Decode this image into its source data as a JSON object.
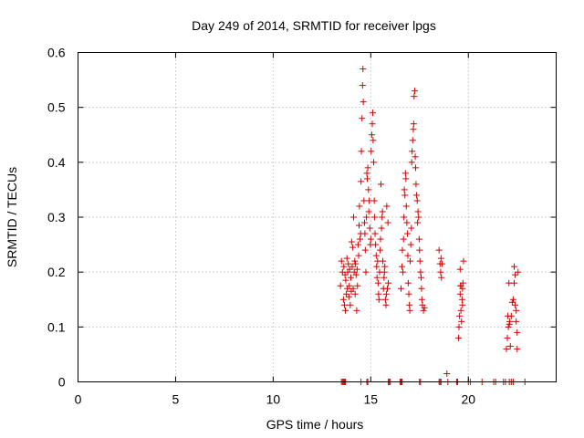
{
  "chart_data": {
    "type": "scatter",
    "title": "Day 249 of 2014, SRMTID for receiver lpgs",
    "xlabel": "GPS time / hours",
    "ylabel": "SRMTID / TECUs",
    "xlim": [
      0,
      24.5
    ],
    "ylim": [
      0,
      0.6
    ],
    "xticks": [
      0,
      5,
      10,
      15,
      20
    ],
    "yticks": [
      0,
      0.1,
      0.2,
      0.3,
      0.4,
      0.5,
      0.6
    ],
    "xtick_labels": [
      "0",
      "5",
      "10",
      "15",
      "20"
    ],
    "ytick_labels": [
      "0",
      "0.1",
      "0.2",
      "0.3",
      "0.4",
      "0.5",
      "0.6"
    ],
    "grid": true,
    "marker": "+",
    "series": [
      {
        "name": "SRMTID",
        "color": "#d40000",
        "x": [
          13.45,
          13.5,
          13.55,
          13.6,
          13.62,
          13.65,
          13.68,
          13.7,
          13.72,
          13.75,
          13.78,
          13.8,
          13.82,
          13.85,
          13.88,
          13.9,
          13.92,
          13.95,
          13.98,
          14.0,
          14.02,
          14.05,
          14.08,
          14.1,
          14.12,
          14.15,
          14.18,
          14.2,
          14.22,
          14.25,
          14.28,
          14.3,
          14.32,
          14.35,
          14.38,
          14.4,
          14.42,
          14.45,
          14.48,
          14.5,
          14.52,
          14.55,
          14.58,
          14.6,
          14.62,
          14.65,
          14.68,
          14.7,
          14.72,
          14.75,
          14.78,
          14.8,
          14.82,
          14.85,
          14.88,
          14.9,
          14.92,
          14.95,
          14.98,
          15.0,
          15.02,
          15.05,
          15.08,
          15.1,
          15.12,
          15.15,
          15.18,
          15.2,
          15.22,
          15.25,
          15.28,
          15.3,
          15.32,
          15.35,
          15.38,
          15.4,
          15.42,
          15.45,
          15.48,
          15.5,
          15.52,
          15.55,
          15.58,
          15.6,
          15.62,
          15.65,
          15.68,
          15.7,
          15.72,
          15.75,
          15.78,
          15.8,
          15.82,
          15.85,
          15.88,
          15.9,
          16.55,
          16.6,
          16.62,
          16.65,
          16.68,
          16.7,
          16.72,
          16.75,
          16.78,
          16.8,
          16.82,
          16.85,
          16.88,
          16.9,
          16.92,
          16.95,
          16.98,
          17.0,
          17.02,
          17.05,
          17.08,
          17.1,
          17.12,
          17.15,
          17.18,
          17.2,
          17.22,
          17.25,
          17.28,
          17.3,
          17.32,
          17.35,
          17.38,
          17.4,
          17.42,
          17.45,
          17.48,
          17.5,
          17.52,
          17.55,
          17.58,
          17.6,
          17.62,
          17.65,
          17.7,
          17.75,
          18.5,
          18.55,
          18.58,
          18.6,
          18.62,
          18.65,
          19.5,
          19.52,
          19.55,
          19.58,
          19.6,
          19.62,
          19.65,
          19.68,
          19.7,
          19.72,
          19.75,
          19.58,
          19.62,
          19.7,
          21.95,
          22.0,
          22.02,
          22.05,
          22.08,
          22.1,
          22.12,
          22.15,
          22.2,
          22.25,
          22.3,
          22.35,
          22.4,
          22.45,
          22.5,
          22.55,
          22.35,
          22.4,
          22.45,
          22.5,
          13.5,
          13.55,
          13.6,
          13.65,
          13.7,
          14.5,
          14.8,
          14.85,
          15.9,
          15.95,
          16.0,
          16.5,
          16.55,
          16.6,
          17.5,
          17.55,
          18.5,
          18.55,
          18.6,
          18.9,
          18.95,
          19.4,
          19.45,
          20.0,
          20.1,
          20.7,
          21.3,
          21.4,
          21.8,
          21.9,
          22.1,
          22.2,
          22.3,
          22.9
        ],
        "y": [
          0.175,
          0.22,
          0.2,
          0.15,
          0.21,
          0.14,
          0.195,
          0.13,
          0.185,
          0.16,
          0.225,
          0.17,
          0.2,
          0.215,
          0.155,
          0.175,
          0.205,
          0.14,
          0.19,
          0.165,
          0.255,
          0.21,
          0.245,
          0.17,
          0.3,
          0.2,
          0.22,
          0.16,
          0.215,
          0.195,
          0.13,
          0.205,
          0.175,
          0.25,
          0.23,
          0.285,
          0.32,
          0.26,
          0.27,
          0.365,
          0.42,
          0.48,
          0.54,
          0.57,
          0.51,
          0.33,
          0.29,
          0.27,
          0.24,
          0.2,
          0.3,
          0.38,
          0.37,
          0.39,
          0.35,
          0.31,
          0.33,
          0.28,
          0.25,
          0.26,
          0.42,
          0.45,
          0.47,
          0.49,
          0.44,
          0.4,
          0.33,
          0.3,
          0.27,
          0.25,
          0.23,
          0.21,
          0.19,
          0.22,
          0.18,
          0.16,
          0.15,
          0.2,
          0.24,
          0.26,
          0.36,
          0.28,
          0.3,
          0.31,
          0.22,
          0.17,
          0.19,
          0.2,
          0.21,
          0.15,
          0.14,
          0.16,
          0.32,
          0.17,
          0.29,
          0.18,
          0.17,
          0.21,
          0.24,
          0.2,
          0.26,
          0.3,
          0.35,
          0.34,
          0.38,
          0.37,
          0.32,
          0.29,
          0.27,
          0.23,
          0.18,
          0.16,
          0.14,
          0.13,
          0.22,
          0.25,
          0.28,
          0.4,
          0.42,
          0.44,
          0.46,
          0.47,
          0.52,
          0.53,
          0.41,
          0.39,
          0.36,
          0.34,
          0.33,
          0.29,
          0.31,
          0.3,
          0.26,
          0.24,
          0.22,
          0.2,
          0.19,
          0.17,
          0.15,
          0.14,
          0.13,
          0.135,
          0.24,
          0.215,
          0.2,
          0.225,
          0.19,
          0.215,
          0.08,
          0.1,
          0.12,
          0.16,
          0.175,
          0.13,
          0.11,
          0.15,
          0.14,
          0.18,
          0.22,
          0.205,
          0.175,
          0.17,
          0.06,
          0.08,
          0.12,
          0.1,
          0.18,
          0.105,
          0.11,
          0.065,
          0.12,
          0.145,
          0.15,
          0.18,
          0.14,
          0.11,
          0.09,
          0.2,
          0.21,
          0.195,
          0.13,
          0.06,
          0,
          0,
          0,
          0,
          0,
          0,
          0,
          0,
          0,
          0,
          0,
          0,
          0,
          0,
          0,
          0,
          0,
          0,
          0,
          0.015,
          0,
          0,
          0,
          0,
          0,
          0,
          0,
          0,
          0,
          0,
          0,
          0,
          0,
          0
        ]
      }
    ]
  }
}
